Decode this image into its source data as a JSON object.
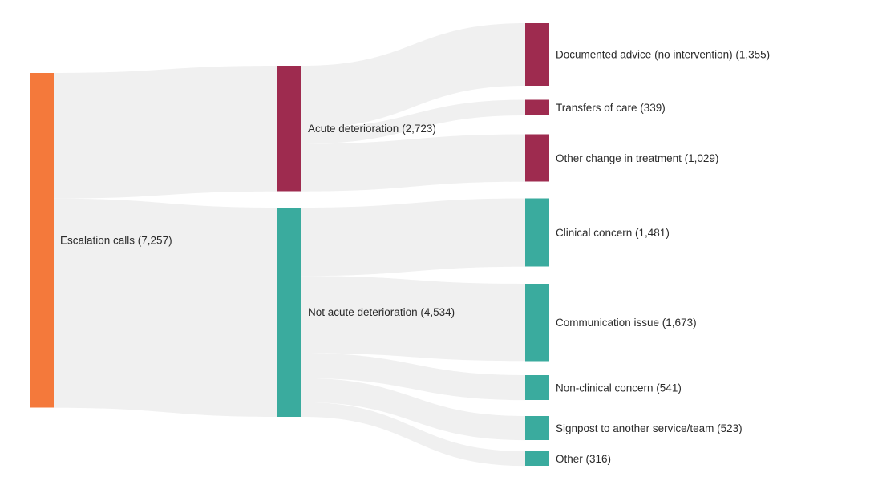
{
  "chart_data": {
    "type": "sankey",
    "title": "",
    "legend_position": "none",
    "background": "#ffffff",
    "link_color": "#f0f0f0",
    "label_color": "#2b2b2b",
    "colors": {
      "source_orange": "#f4793b",
      "acute_maroon": "#9e2b4f",
      "not_acute_teal": "#3aab9e"
    },
    "nodes": [
      {
        "id": "escalation",
        "label": "Escalation calls (7,257)",
        "value": 7257,
        "color": "#f4793b",
        "column": 0
      },
      {
        "id": "acute",
        "label": "Acute deterioration (2,723)",
        "value": 2723,
        "color": "#9e2b4f",
        "column": 1
      },
      {
        "id": "not_acute",
        "label": "Not acute deterioration (4,534)",
        "value": 4534,
        "color": "#3aab9e",
        "column": 1
      },
      {
        "id": "documented_advice",
        "label": "Documented advice (no intervention) (1,355)",
        "value": 1355,
        "color": "#9e2b4f",
        "column": 2
      },
      {
        "id": "transfers_of_care",
        "label": "Transfers of care (339)",
        "value": 339,
        "color": "#9e2b4f",
        "column": 2
      },
      {
        "id": "other_change_treatment",
        "label": "Other change in treatment (1,029)",
        "value": 1029,
        "color": "#9e2b4f",
        "column": 2
      },
      {
        "id": "clinical_concern",
        "label": "Clinical concern (1,481)",
        "value": 1481,
        "color": "#3aab9e",
        "column": 2
      },
      {
        "id": "communication_issue",
        "label": "Communication issue (1,673)",
        "value": 1673,
        "color": "#3aab9e",
        "column": 2
      },
      {
        "id": "non_clinical_concern",
        "label": "Non-clinical concern (541)",
        "value": 541,
        "color": "#3aab9e",
        "column": 2
      },
      {
        "id": "signpost",
        "label": "Signpost to another service/team (523)",
        "value": 523,
        "color": "#3aab9e",
        "column": 2
      },
      {
        "id": "other",
        "label": "Other (316)",
        "value": 316,
        "color": "#3aab9e",
        "column": 2
      }
    ],
    "links": [
      {
        "source": "escalation",
        "target": "acute",
        "value": 2723
      },
      {
        "source": "escalation",
        "target": "not_acute",
        "value": 4534
      },
      {
        "source": "acute",
        "target": "documented_advice",
        "value": 1355
      },
      {
        "source": "acute",
        "target": "transfers_of_care",
        "value": 339
      },
      {
        "source": "acute",
        "target": "other_change_treatment",
        "value": 1029
      },
      {
        "source": "not_acute",
        "target": "clinical_concern",
        "value": 1481
      },
      {
        "source": "not_acute",
        "target": "communication_issue",
        "value": 1673
      },
      {
        "source": "not_acute",
        "target": "non_clinical_concern",
        "value": 541
      },
      {
        "source": "not_acute",
        "target": "signpost",
        "value": 523
      },
      {
        "source": "not_acute",
        "target": "other",
        "value": 316
      }
    ]
  }
}
